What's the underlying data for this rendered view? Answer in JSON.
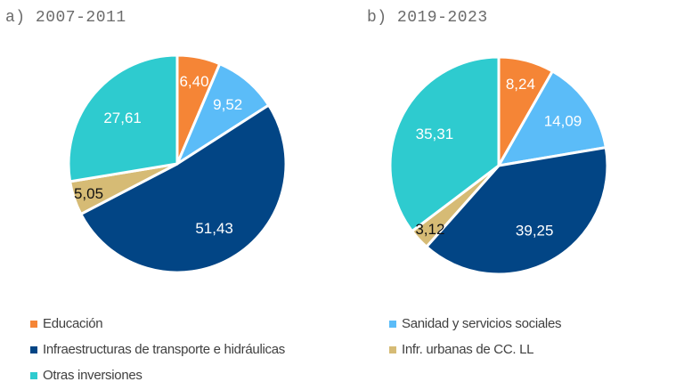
{
  "chart_data": [
    {
      "type": "pie",
      "title": "a) 2007-2011",
      "categories": [
        "Educación",
        "Sanidad y servicios sociales",
        "Infraestructuras de transporte e hidráulicas",
        "Infr. urbanas de CC. LL",
        "Otras inversiones"
      ],
      "values": [
        6.4,
        9.52,
        51.43,
        5.05,
        27.61
      ],
      "labels": [
        "6,40",
        "9,52",
        "51,43",
        "5,05",
        "27,61"
      ],
      "start": "12 o'clock",
      "direction": "clockwise"
    },
    {
      "type": "pie",
      "title": "b) 2019-2023",
      "categories": [
        "Educación",
        "Sanidad y servicios sociales",
        "Infraestructuras de transporte e hidráulicas",
        "Infr. urbanas de CC. LL",
        "Otras inversiones"
      ],
      "values": [
        8.24,
        14.09,
        39.25,
        3.12,
        35.31
      ],
      "labels": [
        "8,24",
        "14,09",
        "39,25",
        "3,12",
        "35,31"
      ],
      "start": "12 o'clock",
      "direction": "clockwise"
    }
  ],
  "colors": [
    "#f58536",
    "#5bbcf8",
    "#024585",
    "#d6bb75",
    "#2ecbcf"
  ],
  "label_colors": [
    "#ffffff",
    "#ffffff",
    "#ffffff",
    "#111111",
    "#ffffff"
  ],
  "legend": {
    "placement": "bottom",
    "items": [
      {
        "label": "Educación",
        "color": "#f58536"
      },
      {
        "label": "Sanidad y servicios sociales",
        "color": "#5bbcf8"
      },
      {
        "label": "Infraestructuras de transporte e hidráulicas",
        "color": "#024585"
      },
      {
        "label": "Infr. urbanas de CC. LL",
        "color": "#d6bb75"
      },
      {
        "label": "Otras inversiones",
        "color": "#2ecbcf"
      }
    ]
  }
}
